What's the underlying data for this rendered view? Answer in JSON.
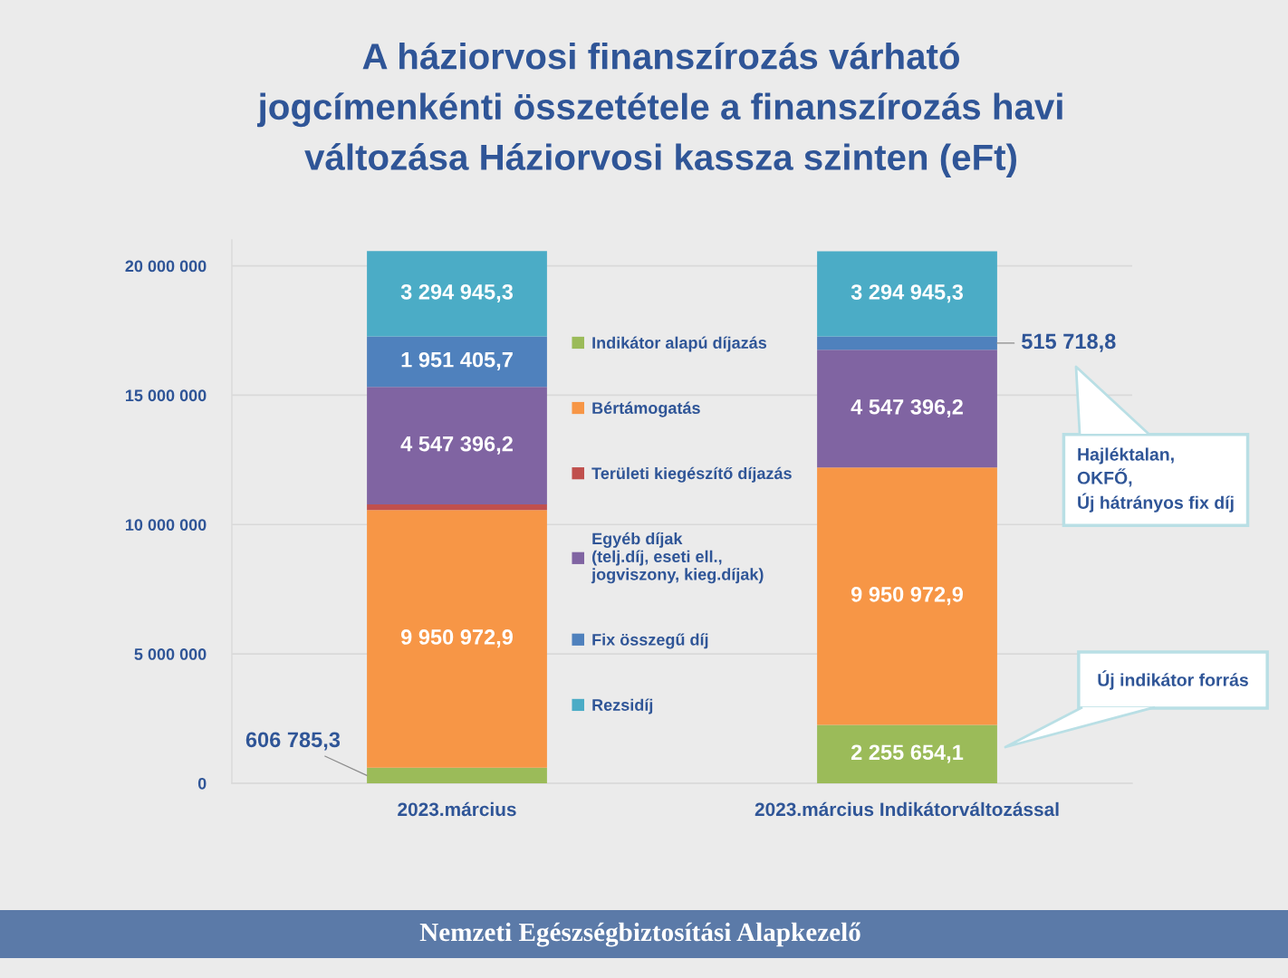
{
  "chart_data": {
    "type": "bar",
    "title": "A háziorvosi finanszírozás várható\njogcímenkénti összetétele a finanszírozás havi\nváltozása Háziorvosi kassza szinten (eFt)",
    "categories": [
      "2023.március",
      "2023.március Indikátorváltozással"
    ],
    "stacked": true,
    "series": [
      {
        "name": "Indikátor alapú díjazás",
        "color": "#9bbb59",
        "values": [
          606785.3,
          2255654.1
        ],
        "value_labels": [
          "606 785,3",
          "2 255 654,1"
        ]
      },
      {
        "name": "Bértámogatás",
        "color": "#f79646",
        "values": [
          9950972.9,
          9950972.9
        ],
        "value_labels": [
          "9 950 972,9",
          "9 950 972,9"
        ]
      },
      {
        "name": "Területi kiegészítő díjazás",
        "color": "#c0504d",
        "values": [
          220000,
          null
        ]
      },
      {
        "name": "Egyéb díjak\n(telj.díj, eseti ell.,\njogviszony, kieg.díjak)",
        "color": "#8064a2",
        "values": [
          4547396.2,
          4547396.2
        ],
        "value_labels": [
          "4 547 396,2",
          "4 547 396,2"
        ]
      },
      {
        "name": "Fix összegű díj",
        "color": "#4f81bd",
        "values": [
          1951405.7,
          515718.8
        ],
        "value_labels": [
          "1 951 405,7",
          "515 718,8"
        ]
      },
      {
        "name": "Rezsidíj",
        "color": "#4bacc6",
        "values": [
          3294945.3,
          3294945.3
        ],
        "value_labels": [
          "3 294 945,3",
          "3 294 945,3"
        ]
      }
    ],
    "ylim": [
      0,
      21000000
    ],
    "yticks": [
      0,
      {
        "value": 5000000,
        "label": "5 000 000"
      },
      {
        "value": 10000000,
        "label": "10 000 000"
      },
      {
        "value": 15000000,
        "label": "15 000 000"
      },
      {
        "value": 20000000,
        "label": "20 000 000"
      }
    ],
    "grid": "y",
    "legend": "center",
    "annotations": [
      "Hajléktalan,\nOKFŐ,\nÚj hátrányos fix díj",
      "Új indikátor forrás",
      "Nemzeti Egészségbiztosítási Alapkezelő"
    ]
  }
}
